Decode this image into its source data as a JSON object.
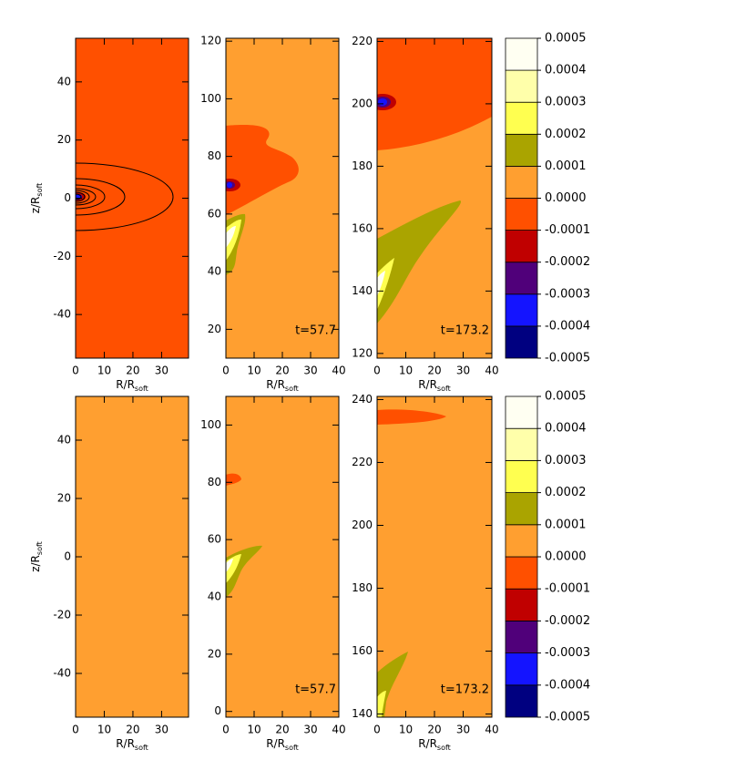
{
  "chart_data": [
    {
      "type": "contour",
      "xlim": [
        0,
        39.4
      ],
      "xticks": [
        0,
        10,
        20,
        30
      ],
      "ylim": [
        -55,
        55
      ],
      "yticks": [
        -40,
        -20,
        0,
        20,
        40
      ],
      "xlabel": "R/R",
      "xlabel_sub": "soft",
      "ylabel": "z/R",
      "ylabel_sub": "soft"
    },
    {
      "type": "contour",
      "xlim": [
        0,
        40
      ],
      "xticks": [
        0,
        10,
        20,
        30,
        40
      ],
      "ylim": [
        10,
        121
      ],
      "yticks": [
        20,
        40,
        60,
        80,
        100,
        120
      ],
      "xlabel": "R/R",
      "xlabel_sub": "soft",
      "annotation": "t=57.7"
    },
    {
      "type": "contour",
      "xlim": [
        0,
        40
      ],
      "xticks": [
        0,
        10,
        20,
        30,
        40
      ],
      "ylim": [
        118.5,
        221
      ],
      "yticks": [
        120,
        140,
        160,
        180,
        200,
        220
      ],
      "xlabel": "R/R",
      "xlabel_sub": "soft",
      "annotation": "t=173.2"
    },
    {
      "type": "contour",
      "xlim": [
        0,
        39.4
      ],
      "xticks": [
        0,
        10,
        20,
        30
      ],
      "ylim": [
        -55,
        55
      ],
      "yticks": [
        -40,
        -20,
        0,
        20,
        40
      ],
      "xlabel": "R/R",
      "xlabel_sub": "soft",
      "ylabel": "z/R",
      "ylabel_sub": "soft"
    },
    {
      "type": "contour",
      "xlim": [
        0,
        40
      ],
      "xticks": [
        0,
        10,
        20,
        30,
        40
      ],
      "ylim": [
        -2,
        110
      ],
      "yticks": [
        0,
        20,
        40,
        60,
        80,
        100
      ],
      "xlabel": "R/R",
      "xlabel_sub": "soft",
      "annotation": "t=57.7"
    },
    {
      "type": "contour",
      "xlim": [
        0,
        40
      ],
      "xticks": [
        0,
        10,
        20,
        30,
        40
      ],
      "ylim": [
        139,
        241
      ],
      "yticks": [
        140,
        160,
        180,
        200,
        220,
        240
      ],
      "xlabel": "R/R",
      "xlabel_sub": "soft",
      "annotation": "t=173.2"
    },
    {
      "type": "colorbar",
      "levels": [
        -0.0005,
        -0.0004,
        -0.0003,
        -0.0002,
        -0.0001,
        {
          "value": 0,
          "label": "0.0000"
        },
        0.0001,
        0.0002,
        0.0003,
        0.0004,
        0.0005
      ],
      "colors": [
        "#000080",
        "#1414ff",
        "#50007a",
        "#c00000",
        "#ff5000",
        "#ff9f30",
        "#aaa400",
        "#ffff50",
        "#ffffaa",
        "#fffff2"
      ]
    },
    {
      "type": "colorbar",
      "levels": [
        -0.0005,
        -0.0004,
        -0.0003,
        -0.0002,
        -0.0001,
        {
          "value": 0,
          "label": "0.0000"
        },
        0.0001,
        0.0002,
        0.0003,
        0.0004,
        0.0005
      ],
      "colors": [
        "#000080",
        "#1414ff",
        "#50007a",
        "#c00000",
        "#ff5000",
        "#ff9f30",
        "#aaa400",
        "#ffff50",
        "#ffffaa",
        "#fffff2"
      ]
    }
  ]
}
